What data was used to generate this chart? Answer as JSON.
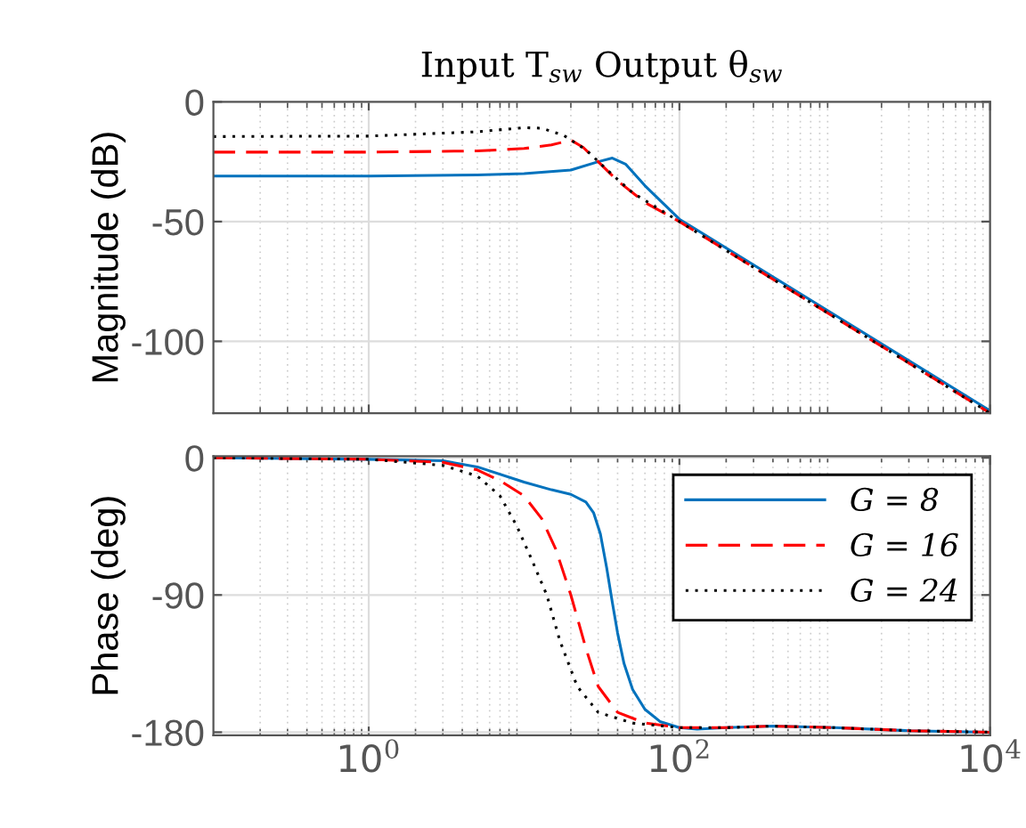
{
  "chart_data": [
    {
      "type": "line",
      "title": "Input T$_{sw}$ Output θ$_{sw}$",
      "ylabel": "Magnitude (dB)",
      "log": "x",
      "grid": true,
      "tick_labels": "y",
      "xlim": [
        0.1,
        10000
      ],
      "xticks": [
        {
          "value": 1,
          "label": null
        },
        {
          "value": 100,
          "label": null
        },
        {
          "value": 10000,
          "label": null
        }
      ],
      "ylim": [
        -130,
        0
      ],
      "yticks": [
        -100,
        -50,
        0
      ],
      "series": [
        {
          "color": "#0072bd",
          "line_style": "solid",
          "x": [
            0.1,
            1,
            5,
            10,
            20,
            30,
            37,
            45,
            60,
            100,
            1000,
            10000
          ],
          "values": [
            -31,
            -31,
            -30.5,
            -30,
            -28.5,
            -25,
            -23.5,
            -26,
            -35,
            -49,
            -89,
            -129
          ]
        },
        {
          "color": "#ff0000",
          "line_style": "dashed",
          "x": [
            0.1,
            1,
            5,
            10,
            15,
            20,
            24,
            30,
            40,
            60,
            100,
            1000,
            10000
          ],
          "values": [
            -21,
            -21,
            -20.5,
            -19.5,
            -18,
            -16,
            -19,
            -25,
            -33,
            -42,
            -50,
            -90,
            -130
          ]
        },
        {
          "color": "#000000",
          "line_style": "dotted",
          "x": [
            0.1,
            1,
            5,
            10,
            13,
            18,
            25,
            35,
            50,
            100,
            1000,
            10000
          ],
          "values": [
            -14.5,
            -14.3,
            -12.5,
            -10.8,
            -11,
            -14,
            -20,
            -29,
            -38,
            -50,
            -90,
            -130
          ]
        }
      ]
    },
    {
      "type": "line",
      "ylabel": "Phase (deg)",
      "log": "x",
      "grid": true,
      "legend": "top right",
      "xlim": [
        0.1,
        10000
      ],
      "xticks": [
        {
          "value": 1,
          "label": "10$^{0}$"
        },
        {
          "value": 100,
          "label": "10$^{2}$"
        },
        {
          "value": 10000,
          "label": "10$^{4}$"
        }
      ],
      "ylim": [
        -182,
        1
      ],
      "yticks": [
        -180,
        -90,
        0
      ],
      "series": [
        {
          "name": "G = 8",
          "color": "#0072bd",
          "line_style": "solid",
          "x": [
            0.1,
            1,
            3,
            5,
            10,
            15,
            20,
            25,
            28,
            31,
            34,
            37,
            40,
            44,
            50,
            60,
            75,
            100,
            130,
            200,
            400,
            1000,
            3000,
            10000
          ],
          "values": [
            0,
            -1,
            -2,
            -6,
            -16,
            -21,
            -24,
            -29,
            -36,
            -50,
            -72,
            -95,
            -115,
            -135,
            -152,
            -165,
            -173,
            -177,
            -178,
            -177,
            -176,
            -177,
            -179,
            -180
          ]
        },
        {
          "name": "G = 16",
          "color": "#ff0000",
          "line_style": "dashed",
          "x": [
            0.1,
            1,
            3,
            5,
            7,
            10,
            13,
            16,
            20,
            25,
            30,
            40,
            60,
            100,
            200,
            400,
            1000,
            3000,
            10000
          ],
          "values": [
            0,
            -1,
            -3,
            -8,
            -15,
            -25,
            -40,
            -60,
            -90,
            -125,
            -150,
            -167,
            -174,
            -177,
            -177,
            -176,
            -177,
            -179,
            -180
          ]
        },
        {
          "name": "G = 24",
          "color": "#000000",
          "line_style": "dotted",
          "x": [
            0.1,
            1,
            3,
            5,
            7,
            9,
            11,
            14,
            17,
            22,
            30,
            50,
            100,
            200,
            400,
            1000,
            3000,
            10000
          ],
          "values": [
            0,
            -1,
            -5,
            -12,
            -25,
            -45,
            -65,
            -90,
            -120,
            -150,
            -167,
            -174,
            -177,
            -177,
            -176,
            -177,
            -179,
            -180
          ]
        }
      ]
    }
  ]
}
